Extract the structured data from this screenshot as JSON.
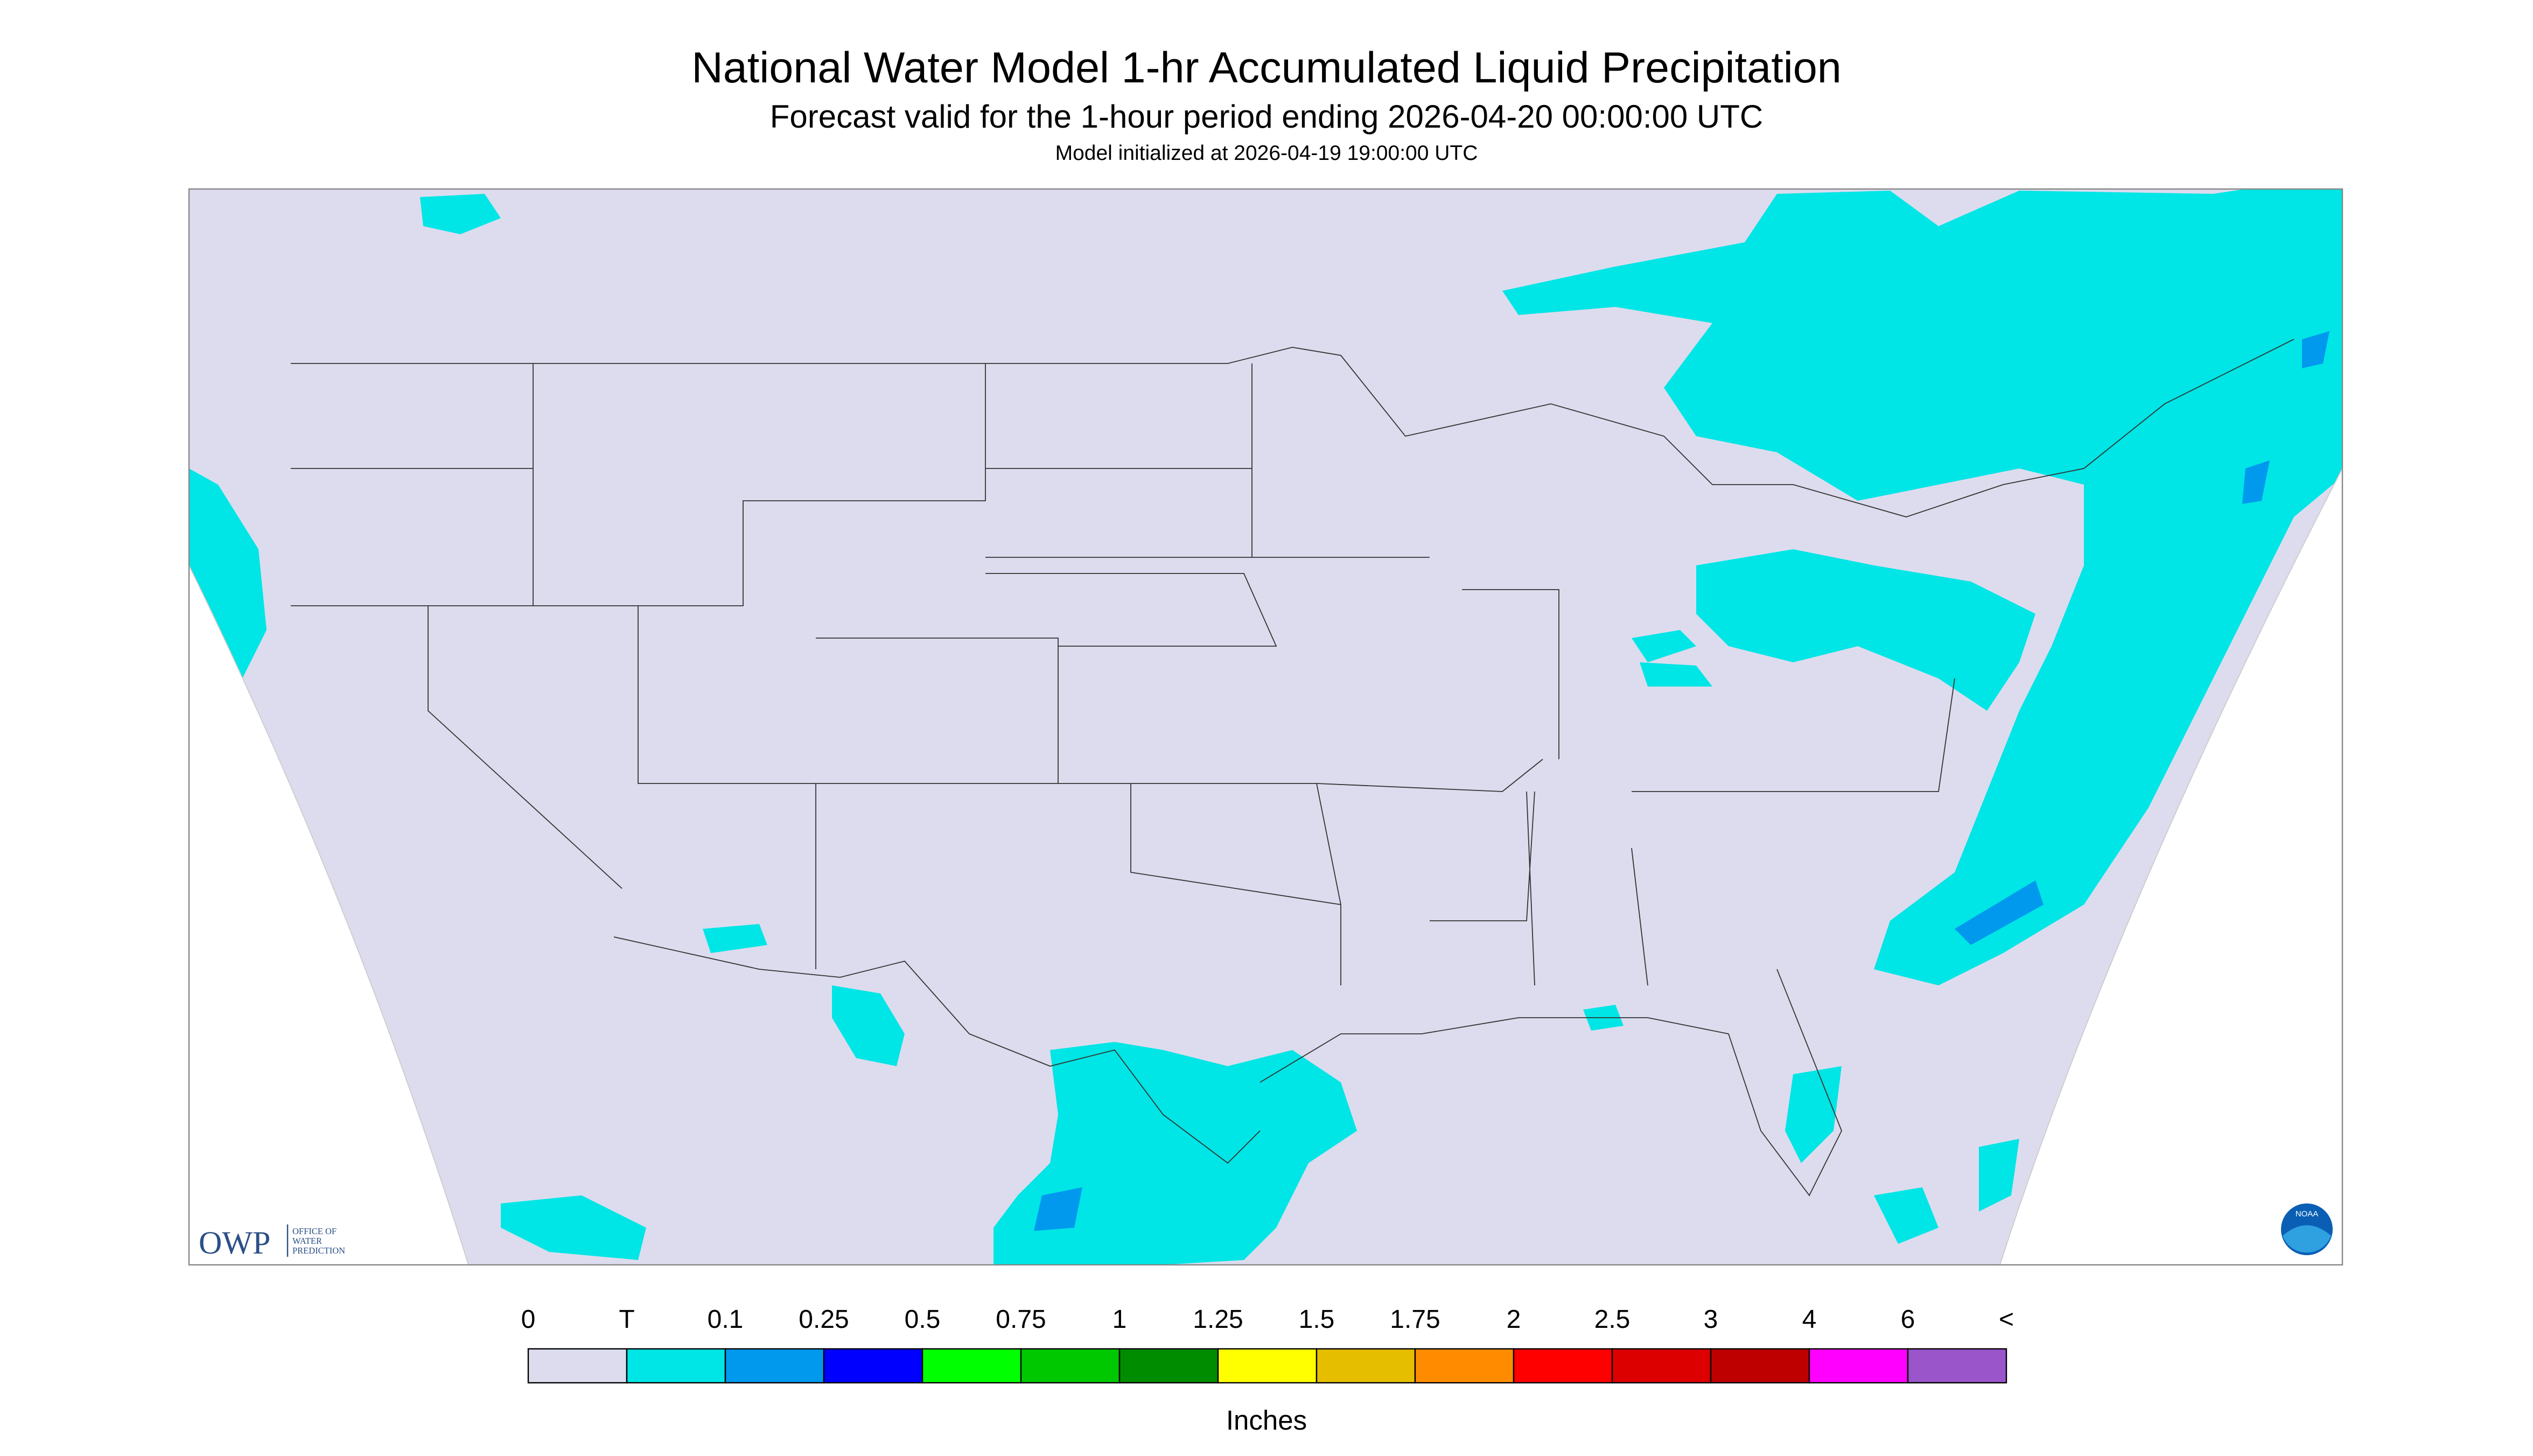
{
  "header": {
    "title": "National Water Model 1-hr Accumulated Liquid Precipitation",
    "subtitle": "Forecast valid for the 1-hour period ending 2026-04-20 00:00:00 UTC",
    "note": "Model initialized at 2026-04-19 19:00:00 UTC"
  },
  "logo": {
    "owp": "OWP",
    "line1": "OFFICE OF",
    "line2": "WATER",
    "line3": "PREDICTION",
    "noaa": "NOAA"
  },
  "legend": {
    "labels": [
      "0",
      "T",
      "0.1",
      "0.25",
      "0.5",
      "0.75",
      "1",
      "1.25",
      "1.5",
      "1.75",
      "2",
      "2.5",
      "3",
      "4",
      "6",
      "<"
    ],
    "colors": [
      "#dcdcee",
      "#00e5e5",
      "#0099ee",
      "#0000ff",
      "#00ff00",
      "#00c800",
      "#008c00",
      "#ffff00",
      "#e6be00",
      "#ff8c00",
      "#ff0000",
      "#dc0000",
      "#be0000",
      "#ff00ff",
      "#9955c9"
    ],
    "unit": "Inches"
  }
}
